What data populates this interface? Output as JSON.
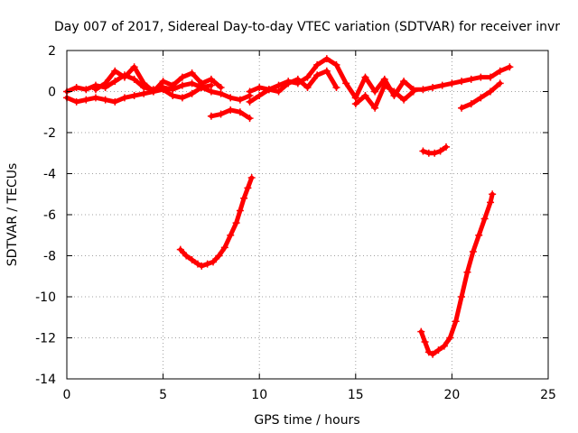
{
  "chart_data": {
    "type": "scatter",
    "title": "Day 007 of 2017, Sidereal Day-to-day VTEC variation (SDTVAR) for receiver invr",
    "xlabel": "GPS time / hours",
    "ylabel": "SDTVAR / TECUs",
    "xlim": [
      0,
      25
    ],
    "ylim": [
      -14,
      2
    ],
    "xticks": [
      0,
      5,
      10,
      15,
      20,
      25
    ],
    "yticks": [
      2,
      0,
      -2,
      -4,
      -6,
      -8,
      -10,
      -12,
      -14
    ],
    "grid": true,
    "marker": "+",
    "series": [
      {
        "name": "SDTVAR",
        "color": "#ff0000",
        "segments": [
          {
            "name": "trace-a",
            "x": [
              0.0,
              0.5,
              1.0,
              1.5,
              2.0,
              2.5,
              3.0,
              3.5,
              4.0,
              4.5,
              5.0,
              5.5,
              6.0,
              6.5,
              7.0,
              7.5,
              8.0,
              8.5,
              9.0,
              9.5
            ],
            "y": [
              0.0,
              0.2,
              0.1,
              0.3,
              0.2,
              0.5,
              0.8,
              0.6,
              0.2,
              0.1,
              0.2,
              0.1,
              0.3,
              0.4,
              0.2,
              0.0,
              -0.1,
              -0.3,
              -0.4,
              -0.2
            ]
          },
          {
            "name": "trace-b",
            "x": [
              0.0,
              0.5,
              1.0,
              1.5,
              2.0,
              2.5,
              3.0,
              3.5,
              4.0,
              4.5,
              5.0,
              5.5,
              6.0,
              6.5,
              7.0,
              7.5
            ],
            "y": [
              -0.3,
              -0.5,
              -0.4,
              -0.3,
              -0.4,
              -0.5,
              -0.3,
              -0.2,
              -0.1,
              0.0,
              0.1,
              -0.2,
              -0.3,
              -0.1,
              0.2,
              0.3
            ]
          },
          {
            "name": "trace-c",
            "x": [
              1.5,
              2.0,
              2.5,
              3.0,
              3.5,
              4.0,
              4.5,
              5.0,
              5.5,
              6.0,
              6.5,
              7.0,
              7.5,
              8.0
            ],
            "y": [
              0.1,
              0.4,
              1.0,
              0.7,
              1.2,
              0.4,
              0.0,
              0.5,
              0.3,
              0.7,
              0.9,
              0.4,
              0.6,
              0.2
            ]
          },
          {
            "name": "trace-d",
            "x": [
              7.5,
              8.0,
              8.5,
              9.0,
              9.5
            ],
            "y": [
              -1.2,
              -1.1,
              -0.9,
              -1.0,
              -1.3
            ]
          },
          {
            "name": "trace-e",
            "x": [
              9.5,
              10.0,
              10.5,
              11.0,
              11.5,
              12.0,
              12.5,
              13.0,
              13.5,
              14.0,
              14.5,
              15.0
            ],
            "y": [
              0.0,
              0.2,
              0.1,
              0.3,
              0.5,
              0.4,
              0.7,
              1.3,
              1.6,
              1.3,
              0.4,
              -0.3
            ]
          },
          {
            "name": "trace-f",
            "x": [
              9.5,
              10.0,
              10.5,
              11.0,
              11.5,
              12.0,
              12.5,
              13.0,
              13.5,
              14.0
            ],
            "y": [
              -0.5,
              -0.2,
              0.1,
              0.0,
              0.4,
              0.6,
              0.2,
              0.8,
              1.0,
              0.2
            ]
          },
          {
            "name": "trace-g",
            "x": [
              15.0,
              15.5,
              16.0,
              16.5,
              17.0,
              17.5,
              18.0,
              18.5,
              19.0,
              19.5,
              20.0,
              20.5,
              21.0,
              21.5,
              22.0,
              22.5,
              23.0
            ],
            "y": [
              -0.3,
              0.7,
              0.0,
              0.6,
              -0.2,
              0.5,
              0.1,
              0.1,
              0.2,
              0.3,
              0.4,
              0.5,
              0.6,
              0.7,
              0.7,
              1.0,
              1.2
            ]
          },
          {
            "name": "trace-h",
            "x": [
              15.0,
              15.5,
              16.0,
              16.5,
              17.0,
              17.5,
              18.0
            ],
            "y": [
              -0.6,
              -0.2,
              -0.8,
              0.3,
              0.0,
              -0.4,
              0.0
            ]
          },
          {
            "name": "trace-i",
            "x": [
              20.5,
              21.0,
              21.5,
              22.0,
              22.5
            ],
            "y": [
              -0.8,
              -0.6,
              -0.3,
              0.0,
              0.4
            ]
          },
          {
            "name": "trace-j",
            "x": [
              18.5,
              18.8,
              19.1,
              19.4,
              19.7
            ],
            "y": [
              -2.9,
              -3.0,
              -3.0,
              -2.9,
              -2.7
            ]
          },
          {
            "name": "trace-k",
            "x": [
              5.9,
              6.2,
              6.5,
              6.8,
              7.0,
              7.3,
              7.6,
              7.9,
              8.2,
              8.5,
              8.8,
              9.0,
              9.2,
              9.4,
              9.6
            ],
            "y": [
              -7.7,
              -8.0,
              -8.2,
              -8.4,
              -8.5,
              -8.4,
              -8.3,
              -8.0,
              -7.6,
              -7.0,
              -6.4,
              -5.8,
              -5.2,
              -4.7,
              -4.2
            ]
          },
          {
            "name": "trace-l",
            "x": [
              18.4,
              18.6,
              18.8,
              19.0,
              19.3,
              19.6,
              19.9,
              20.2,
              20.5,
              20.8,
              21.1,
              21.4,
              21.7,
              22.0,
              22.1
            ],
            "y": [
              -11.7,
              -12.2,
              -12.7,
              -12.8,
              -12.6,
              -12.4,
              -12.0,
              -11.2,
              -10.0,
              -8.8,
              -7.8,
              -7.0,
              -6.2,
              -5.4,
              -5.0
            ]
          }
        ]
      }
    ]
  }
}
